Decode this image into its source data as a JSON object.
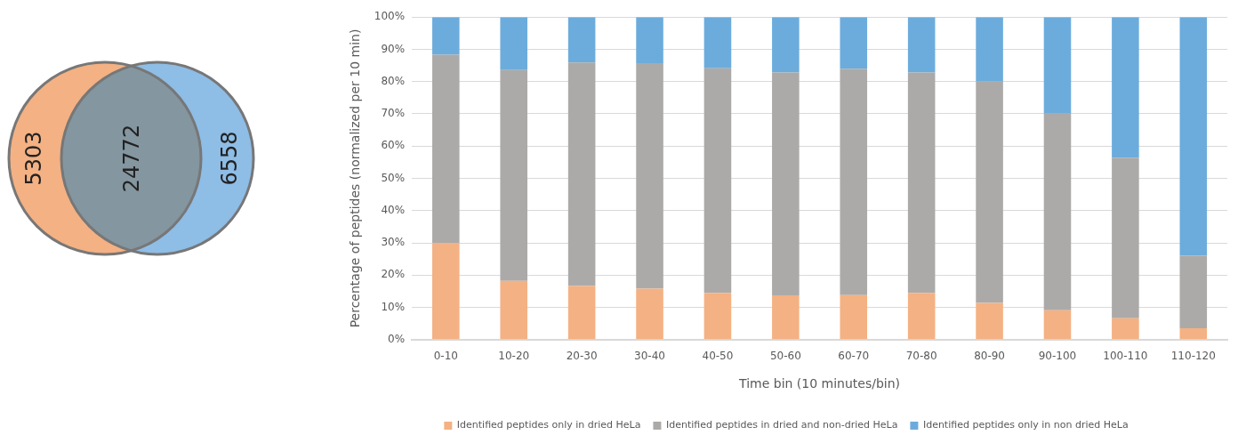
{
  "chart_data": [
    {
      "type": "other",
      "data_labels": true,
      "categories": [
        null,
        null,
        null
      ],
      "values": [
        5303,
        24772,
        6558
      ],
      "colors": [
        "#f4b183",
        "#8496a0",
        "#8ebde6"
      ]
    },
    {
      "type": "bar",
      "stacked": true,
      "xlabel": "Time bin (10 minutes/bin)",
      "ylabel": "Percentage of peptides (normalized per 10 min)",
      "categories": [
        "0-10",
        "10-20",
        "20-30",
        "30-40",
        "40-50",
        "50-60",
        "60-70",
        "70-80",
        "80-90",
        "90-100",
        "100-110",
        "110-120"
      ],
      "ylim": [
        0,
        100
      ],
      "yticks": [
        {
          "value": 0,
          "label": "0%"
        },
        {
          "value": 10,
          "label": "10%"
        },
        {
          "value": 20,
          "label": "20%"
        },
        {
          "value": 30,
          "label": "30%"
        },
        {
          "value": 40,
          "label": "40%"
        },
        {
          "value": 50,
          "label": "50%"
        },
        {
          "value": 60,
          "label": "60%"
        },
        {
          "value": 70,
          "label": "70%"
        },
        {
          "value": 80,
          "label": "80%"
        },
        {
          "value": 90,
          "label": "90%"
        },
        {
          "value": 100,
          "label": "100%"
        }
      ],
      "grid": "y",
      "legend": "bottom",
      "series": [
        {
          "name": "Identified peptides only in dried HeLa",
          "color": "#f4b183",
          "values": [
            30,
            18.2,
            16.6,
            15.8,
            14.5,
            13.7,
            13.8,
            14.5,
            11.4,
            9.1,
            6.6,
            3.5
          ]
        },
        {
          "name": "Identified peptides in dried and non-dried HeLa",
          "color": "#abaaa9",
          "values": [
            58.3,
            65.4,
            69.3,
            69.9,
            69.6,
            69.1,
            70.2,
            68.3,
            68.6,
            61.2,
            49.8,
            22.5
          ]
        },
        {
          "name": "Identified peptides only in non dried HeLa",
          "color": "#6cacdc",
          "values": [
            11.7,
            16.4,
            14.1,
            14.3,
            15.9,
            17.2,
            16,
            17.2,
            20,
            29.7,
            43.6,
            74
          ]
        }
      ]
    }
  ]
}
